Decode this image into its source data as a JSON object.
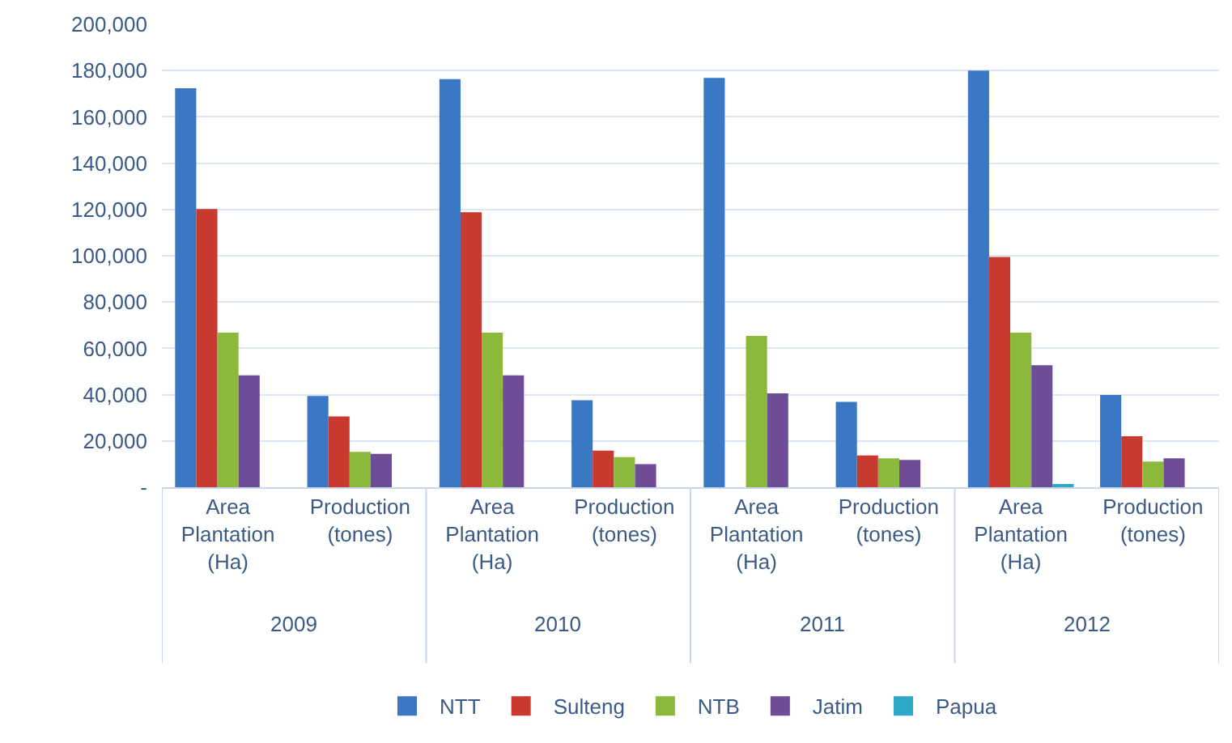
{
  "chart_data": {
    "type": "bar",
    "categories": [
      "Area Plantation (Ha)",
      "Production (tones)",
      "Area Plantation (Ha)",
      "Production (tones)",
      "Area Plantation (Ha)",
      "Production (tones)",
      "Area Plantation (Ha)",
      "Production (tones)"
    ],
    "series": [
      {
        "name": "NTT",
        "color": "#3a78c4",
        "values": [
          172400,
          39400,
          176300,
          37600,
          176800,
          36900,
          180000,
          39900
        ]
      },
      {
        "name": "Sulteng",
        "color": "#c8392f",
        "values": [
          120200,
          30600,
          118800,
          15800,
          null,
          13700,
          99500,
          22000
        ]
      },
      {
        "name": "NTB",
        "color": "#8cb83c",
        "values": [
          66800,
          15300,
          66800,
          13000,
          65400,
          12500,
          66800,
          11100
        ]
      },
      {
        "name": "Jatim",
        "color": "#6f4d96",
        "values": [
          48300,
          14400,
          48300,
          10000,
          40600,
          11800,
          52700,
          12500
        ]
      },
      {
        "name": "Papua",
        "color": "#2fa8c8",
        "values": [
          null,
          null,
          null,
          null,
          null,
          null,
          1200,
          null
        ]
      }
    ],
    "annotations": [
      "2009",
      "2010",
      "2011",
      "2012"
    ],
    "ylim": [
      0,
      200000
    ],
    "yticks": [
      {
        "value": 0,
        "label": "-"
      },
      {
        "value": 20000,
        "label": "20,000"
      },
      {
        "value": 40000,
        "label": "40,000"
      },
      {
        "value": 60000,
        "label": "60,000"
      },
      {
        "value": 80000,
        "label": "80,000"
      },
      {
        "value": 100000,
        "label": "100,000"
      },
      {
        "value": 120000,
        "label": "120,000"
      },
      {
        "value": 140000,
        "label": "140,000"
      },
      {
        "value": 160000,
        "label": "160,000"
      },
      {
        "value": 180000,
        "label": "180,000"
      },
      {
        "value": 200000,
        "label": "200,000"
      }
    ],
    "grid": "y",
    "legend": "bottom"
  }
}
